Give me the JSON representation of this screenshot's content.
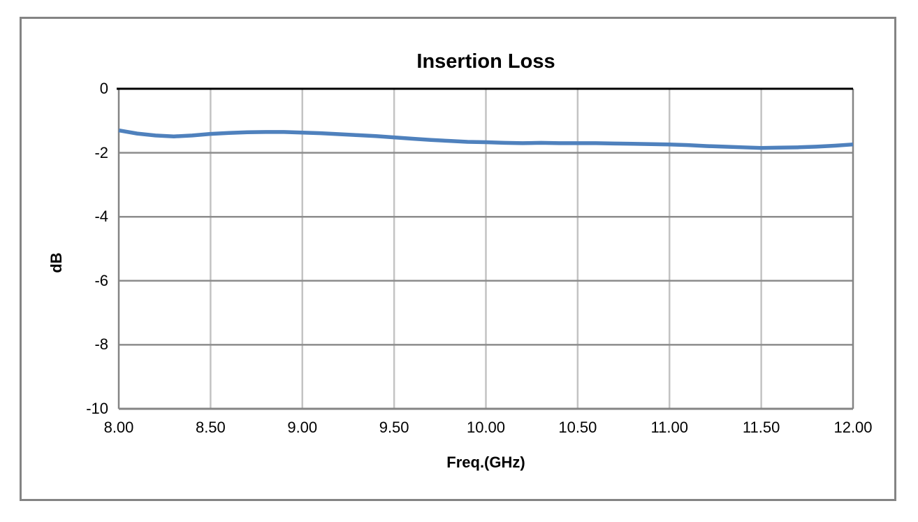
{
  "chart_data": {
    "type": "line",
    "title": "Insertion Loss",
    "xlabel": "Freq.(GHz)",
    "ylabel": "dB",
    "xlim": [
      8.0,
      12.0
    ],
    "ylim": [
      -10,
      0
    ],
    "grid": true,
    "legend_position": "none",
    "xticks": [
      8.0,
      8.5,
      9.0,
      9.5,
      10.0,
      10.5,
      11.0,
      11.5,
      12.0
    ],
    "xtick_labels": [
      "8.00",
      "8.50",
      "9.00",
      "9.50",
      "10.00",
      "10.50",
      "11.00",
      "11.50",
      "12.00"
    ],
    "yticks": [
      0,
      -2,
      -4,
      -6,
      -8,
      -10
    ],
    "ytick_labels": [
      "0",
      "-2",
      "-4",
      "-6",
      "-8",
      "-10"
    ],
    "series": [
      {
        "name": "Insertion Loss",
        "color": "#4f81bd",
        "x": [
          8.0,
          8.1,
          8.2,
          8.3,
          8.4,
          8.5,
          8.6,
          8.7,
          8.8,
          8.9,
          9.0,
          9.1,
          9.2,
          9.3,
          9.4,
          9.5,
          9.6,
          9.7,
          9.8,
          9.9,
          10.0,
          10.1,
          10.2,
          10.3,
          10.4,
          10.5,
          10.6,
          10.7,
          10.8,
          10.9,
          11.0,
          11.1,
          11.2,
          11.3,
          11.4,
          11.5,
          11.6,
          11.7,
          11.8,
          11.9,
          12.0
        ],
        "y": [
          -1.3,
          -1.4,
          -1.46,
          -1.49,
          -1.46,
          -1.41,
          -1.38,
          -1.36,
          -1.35,
          -1.35,
          -1.37,
          -1.39,
          -1.42,
          -1.45,
          -1.48,
          -1.52,
          -1.56,
          -1.6,
          -1.63,
          -1.66,
          -1.67,
          -1.69,
          -1.7,
          -1.69,
          -1.7,
          -1.7,
          -1.7,
          -1.71,
          -1.72,
          -1.73,
          -1.74,
          -1.76,
          -1.79,
          -1.81,
          -1.83,
          -1.85,
          -1.84,
          -1.83,
          -1.81,
          -1.78,
          -1.74
        ]
      }
    ]
  },
  "colors": {
    "series_line": "#4f81bd",
    "h_gridline": "#8c8c8c",
    "v_gridline": "#c3c3c3",
    "zero_axis": "#000000",
    "plot_border": "#848484",
    "frame_border": "#848484",
    "background": "#ffffff",
    "text": "#000000"
  }
}
